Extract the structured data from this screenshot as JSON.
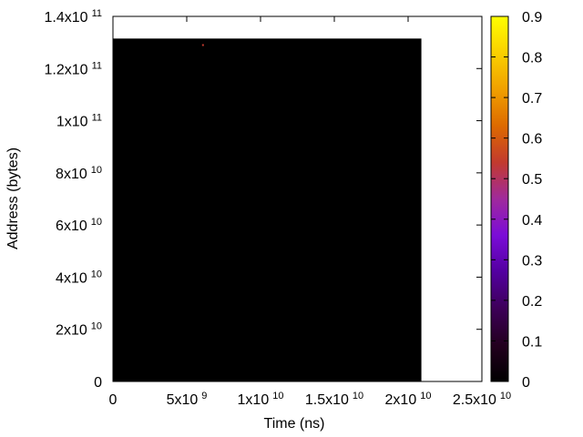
{
  "chart_data": {
    "type": "heatmap",
    "title": "",
    "xlabel": "Time (ns)",
    "ylabel": "Address (bytes)",
    "xlim": [
      0,
      25000000000
    ],
    "ylim": [
      0,
      140000000000
    ],
    "x_ticks": [
      {
        "value": 0,
        "mantissa": "0",
        "exp": ""
      },
      {
        "value": 5000000000,
        "mantissa": "5x10",
        "exp": "9"
      },
      {
        "value": 10000000000,
        "mantissa": "1x10",
        "exp": "10"
      },
      {
        "value": 15000000000,
        "mantissa": "1.5x10",
        "exp": "10"
      },
      {
        "value": 20000000000,
        "mantissa": "2x10",
        "exp": "10"
      },
      {
        "value": 25000000000,
        "mantissa": "2.5x10",
        "exp": "10"
      }
    ],
    "y_ticks": [
      {
        "value": 0,
        "mantissa": "0",
        "exp": ""
      },
      {
        "value": 20000000000,
        "mantissa": "2x10",
        "exp": "10"
      },
      {
        "value": 40000000000,
        "mantissa": "4x10",
        "exp": "10"
      },
      {
        "value": 60000000000,
        "mantissa": "6x10",
        "exp": "10"
      },
      {
        "value": 80000000000,
        "mantissa": "8x10",
        "exp": "10"
      },
      {
        "value": 100000000000,
        "mantissa": "1x10",
        "exp": "11"
      },
      {
        "value": 120000000000,
        "mantissa": "1.2x10",
        "exp": "11"
      },
      {
        "value": 140000000000,
        "mantissa": "1.4x10",
        "exp": "11"
      }
    ],
    "heatmap_region": {
      "x": [
        0,
        20900000000
      ],
      "y": [
        0,
        131500000000
      ],
      "value": 0
    },
    "hotspots": [
      {
        "x": 6100000000,
        "y": 129000000000,
        "value": 0.55
      }
    ],
    "colorbar": {
      "range": [
        0,
        0.9
      ],
      "ticks": [
        "0",
        "0.1",
        "0.2",
        "0.3",
        "0.4",
        "0.5",
        "0.6",
        "0.7",
        "0.8",
        "0.9"
      ],
      "palette": [
        "#000000",
        "#23001f",
        "#3d0058",
        "#5300a0",
        "#7b0cd8",
        "#a02a9c",
        "#c23a2e",
        "#dd6a00",
        "#f0a000",
        "#fad000",
        "#ffff00"
      ]
    },
    "grid": false
  }
}
